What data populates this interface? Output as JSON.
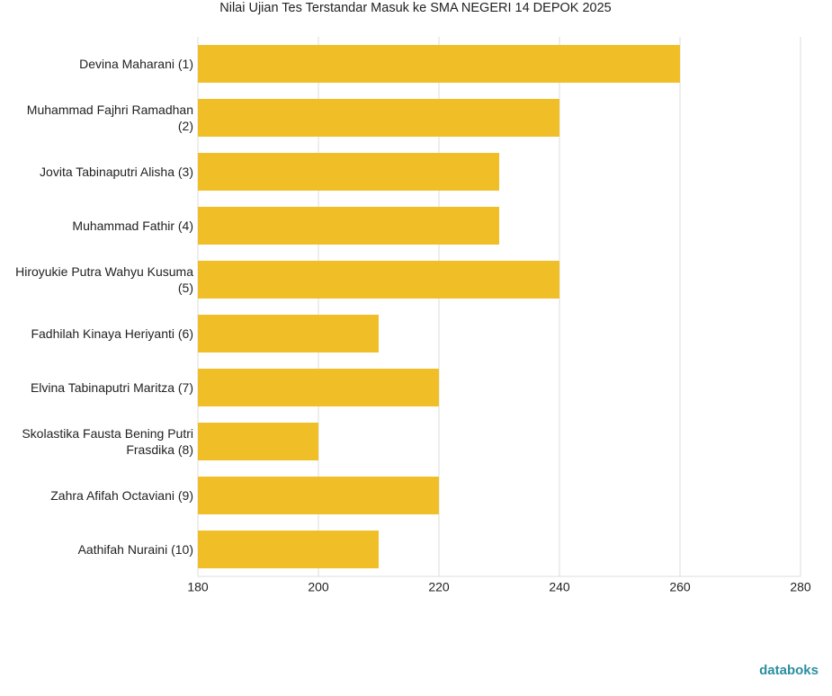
{
  "chart_data": {
    "type": "bar",
    "orientation": "horizontal",
    "title": "Nilai Ujian Tes Terstandar Masuk ke SMA NEGERI 14 DEPOK 2025",
    "categories": [
      "Devina Maharani (1)",
      "Muhammad Fajhri Ramadhan (2)",
      "Jovita Tabinaputri Alisha (3)",
      "Muhammad Fathir (4)",
      "Hiroyukie Putra Wahyu Kusuma (5)",
      "Fadhilah Kinaya Heriyanti (6)",
      "Elvina Tabinaputri Maritza (7)",
      "Skolastika Fausta Bening Putri Frasdika (8)",
      "Zahra Afifah Octaviani (9)",
      "Aathifah Nuraini (10)"
    ],
    "values": [
      260,
      240,
      230,
      230,
      240,
      210,
      220,
      200,
      220,
      210
    ],
    "color": "#f0bf28",
    "xlim": [
      180,
      280
    ],
    "xticks": [
      180,
      200,
      220,
      240,
      260,
      280
    ],
    "grid": true,
    "watermark": "databoks"
  }
}
